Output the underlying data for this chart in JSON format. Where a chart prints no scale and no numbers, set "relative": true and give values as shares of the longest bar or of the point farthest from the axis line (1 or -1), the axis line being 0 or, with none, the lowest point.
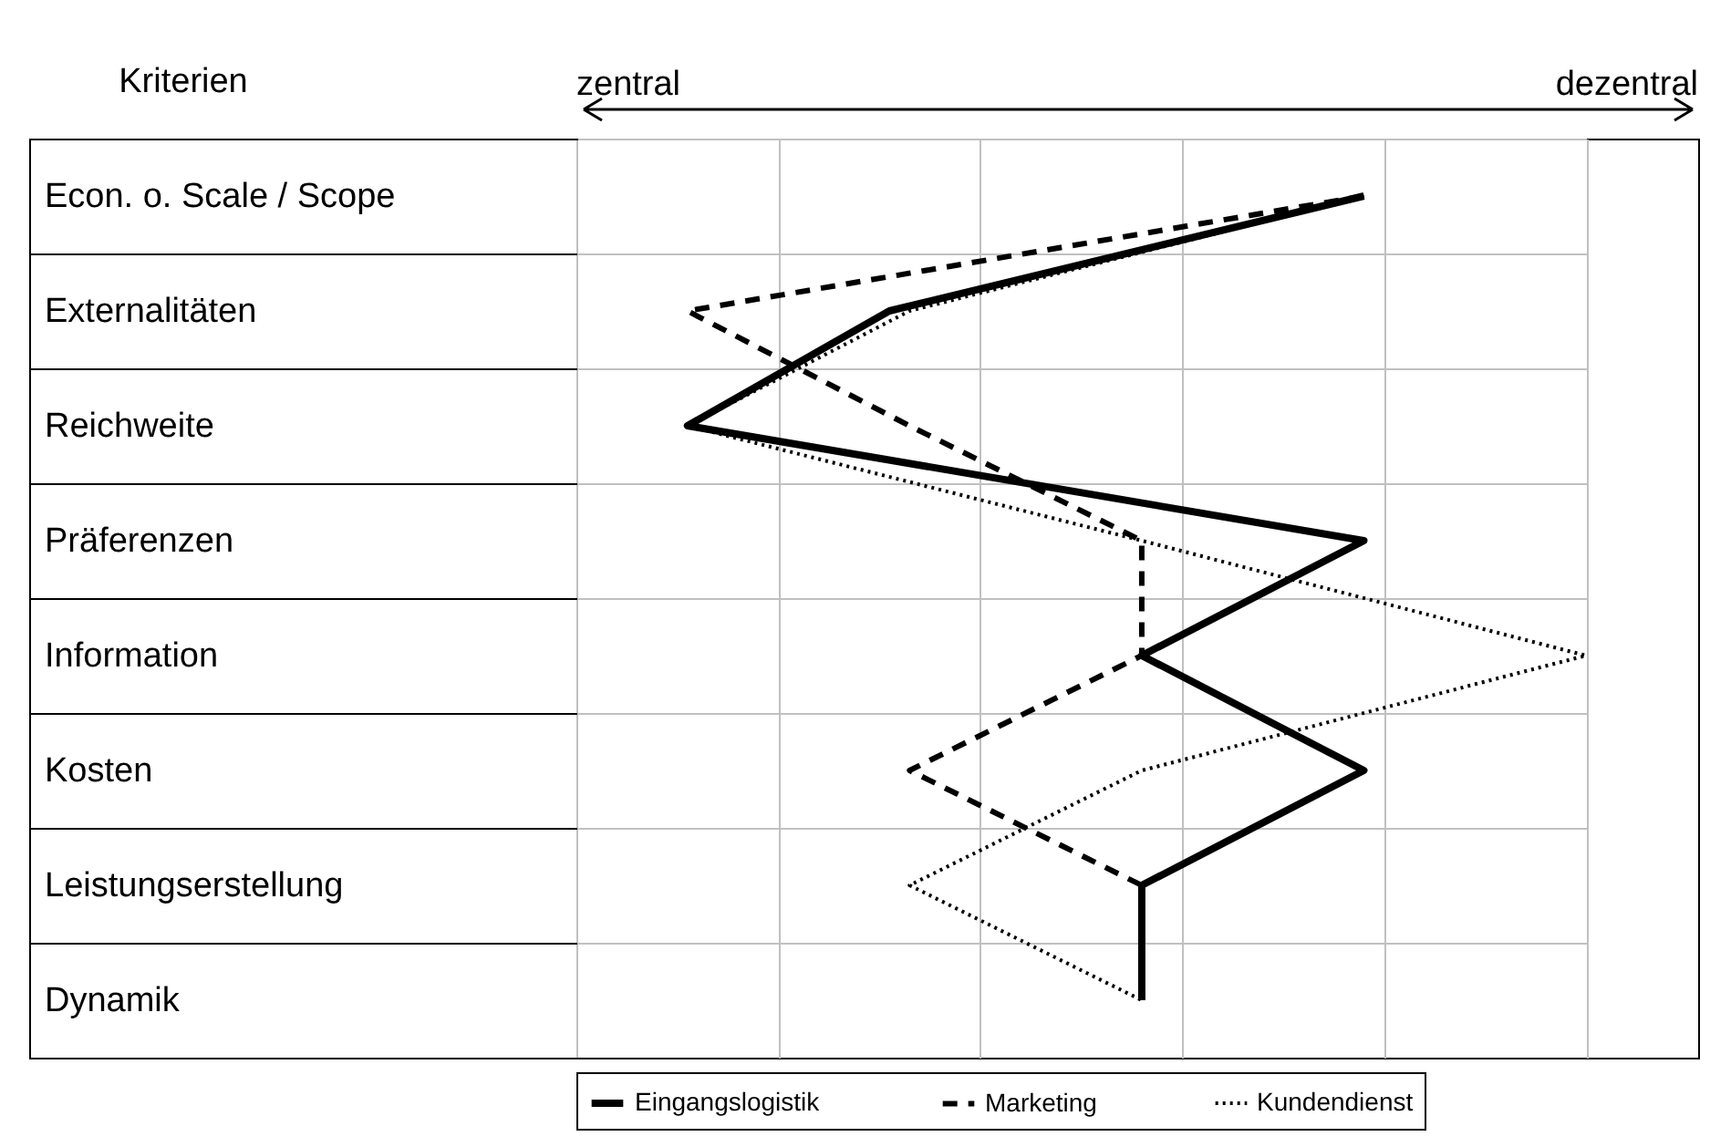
{
  "chart_data": {
    "type": "line",
    "orientation": "horizontal",
    "relative": true,
    "ylabel": "Kriterien",
    "annotations": [
      "zentral",
      "dezentral"
    ],
    "categories": [
      "Econ. o. Scale / Scope",
      "Externalitäten",
      "Reichweite",
      "Präferenzen",
      "Information",
      "Kosten",
      "Leistungserstellung",
      "Dynamik"
    ],
    "series": [
      {
        "name": "Eingangslogistik",
        "color": "#000000",
        "line_style": "solid",
        "values": [
          0.78,
          0.31,
          0.11,
          0.78,
          0.56,
          0.78,
          0.56,
          0.56
        ]
      },
      {
        "name": "Marketing",
        "color": "#000000",
        "line_style": "dashed",
        "values": [
          0.78,
          0.11,
          0.33,
          0.56,
          0.56,
          0.33,
          0.56,
          0.56
        ]
      },
      {
        "name": "Kundendienst",
        "color": "#000000",
        "line_style": "dotted",
        "values": [
          0.78,
          0.33,
          0.11,
          0.56,
          1,
          0.56,
          0.33,
          0.56
        ]
      }
    ],
    "grid": true,
    "legend": "bottom"
  }
}
